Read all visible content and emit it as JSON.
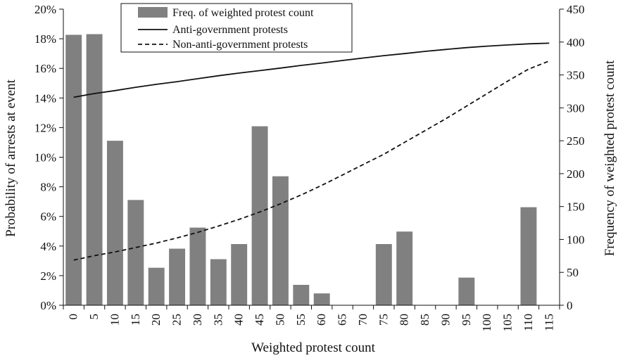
{
  "chart_data": {
    "type": "bar",
    "x": [
      "0",
      "5",
      "10",
      "15",
      "20",
      "25",
      "30",
      "35",
      "40",
      "45",
      "50",
      "55",
      "60",
      "65",
      "70",
      "75",
      "80",
      "85",
      "90",
      "95",
      "100",
      "105",
      "110",
      "115"
    ],
    "xlabel": "Weighted protest count",
    "ylabel_left": "Probability of arrests at event",
    "ylabel_right": "Frequency of weighted protest count",
    "ylim_left": [
      0,
      20
    ],
    "ylim_right": [
      0,
      450
    ],
    "left_ticks": [
      "0%",
      "2%",
      "4%",
      "6%",
      "8%",
      "10%",
      "12%",
      "14%",
      "16%",
      "18%",
      "20%"
    ],
    "right_ticks": [
      "0",
      "50",
      "100",
      "150",
      "200",
      "250",
      "300",
      "350",
      "400",
      "450"
    ],
    "legend_position": "top-center",
    "grid": false,
    "series": [
      {
        "name": "Freq. of weighted protest count",
        "kind": "bar",
        "axis": "right",
        "color": "#808080",
        "values": [
          411,
          412,
          250,
          160,
          57,
          86,
          118,
          70,
          93,
          272,
          196,
          31,
          18,
          0,
          0,
          93,
          112,
          0,
          0,
          42,
          0,
          0,
          149,
          null
        ]
      },
      {
        "name": "Anti-government protests",
        "kind": "line",
        "style": "solid",
        "axis": "left",
        "color": "#111111",
        "values": [
          14.05,
          14.3,
          14.5,
          14.72,
          14.92,
          15.1,
          15.3,
          15.5,
          15.68,
          15.85,
          16.02,
          16.2,
          16.36,
          16.53,
          16.7,
          16.86,
          17.0,
          17.15,
          17.28,
          17.4,
          17.5,
          17.58,
          17.66,
          17.7
        ]
      },
      {
        "name": "Non-anti-government protests",
        "kind": "line",
        "style": "dashed",
        "axis": "left",
        "color": "#111111",
        "values": [
          3.05,
          3.35,
          3.6,
          3.9,
          4.2,
          4.55,
          4.92,
          5.35,
          5.8,
          6.3,
          6.85,
          7.45,
          8.1,
          8.8,
          9.5,
          10.2,
          11.0,
          11.8,
          12.6,
          13.45,
          14.3,
          15.15,
          15.95,
          16.5
        ]
      }
    ]
  }
}
